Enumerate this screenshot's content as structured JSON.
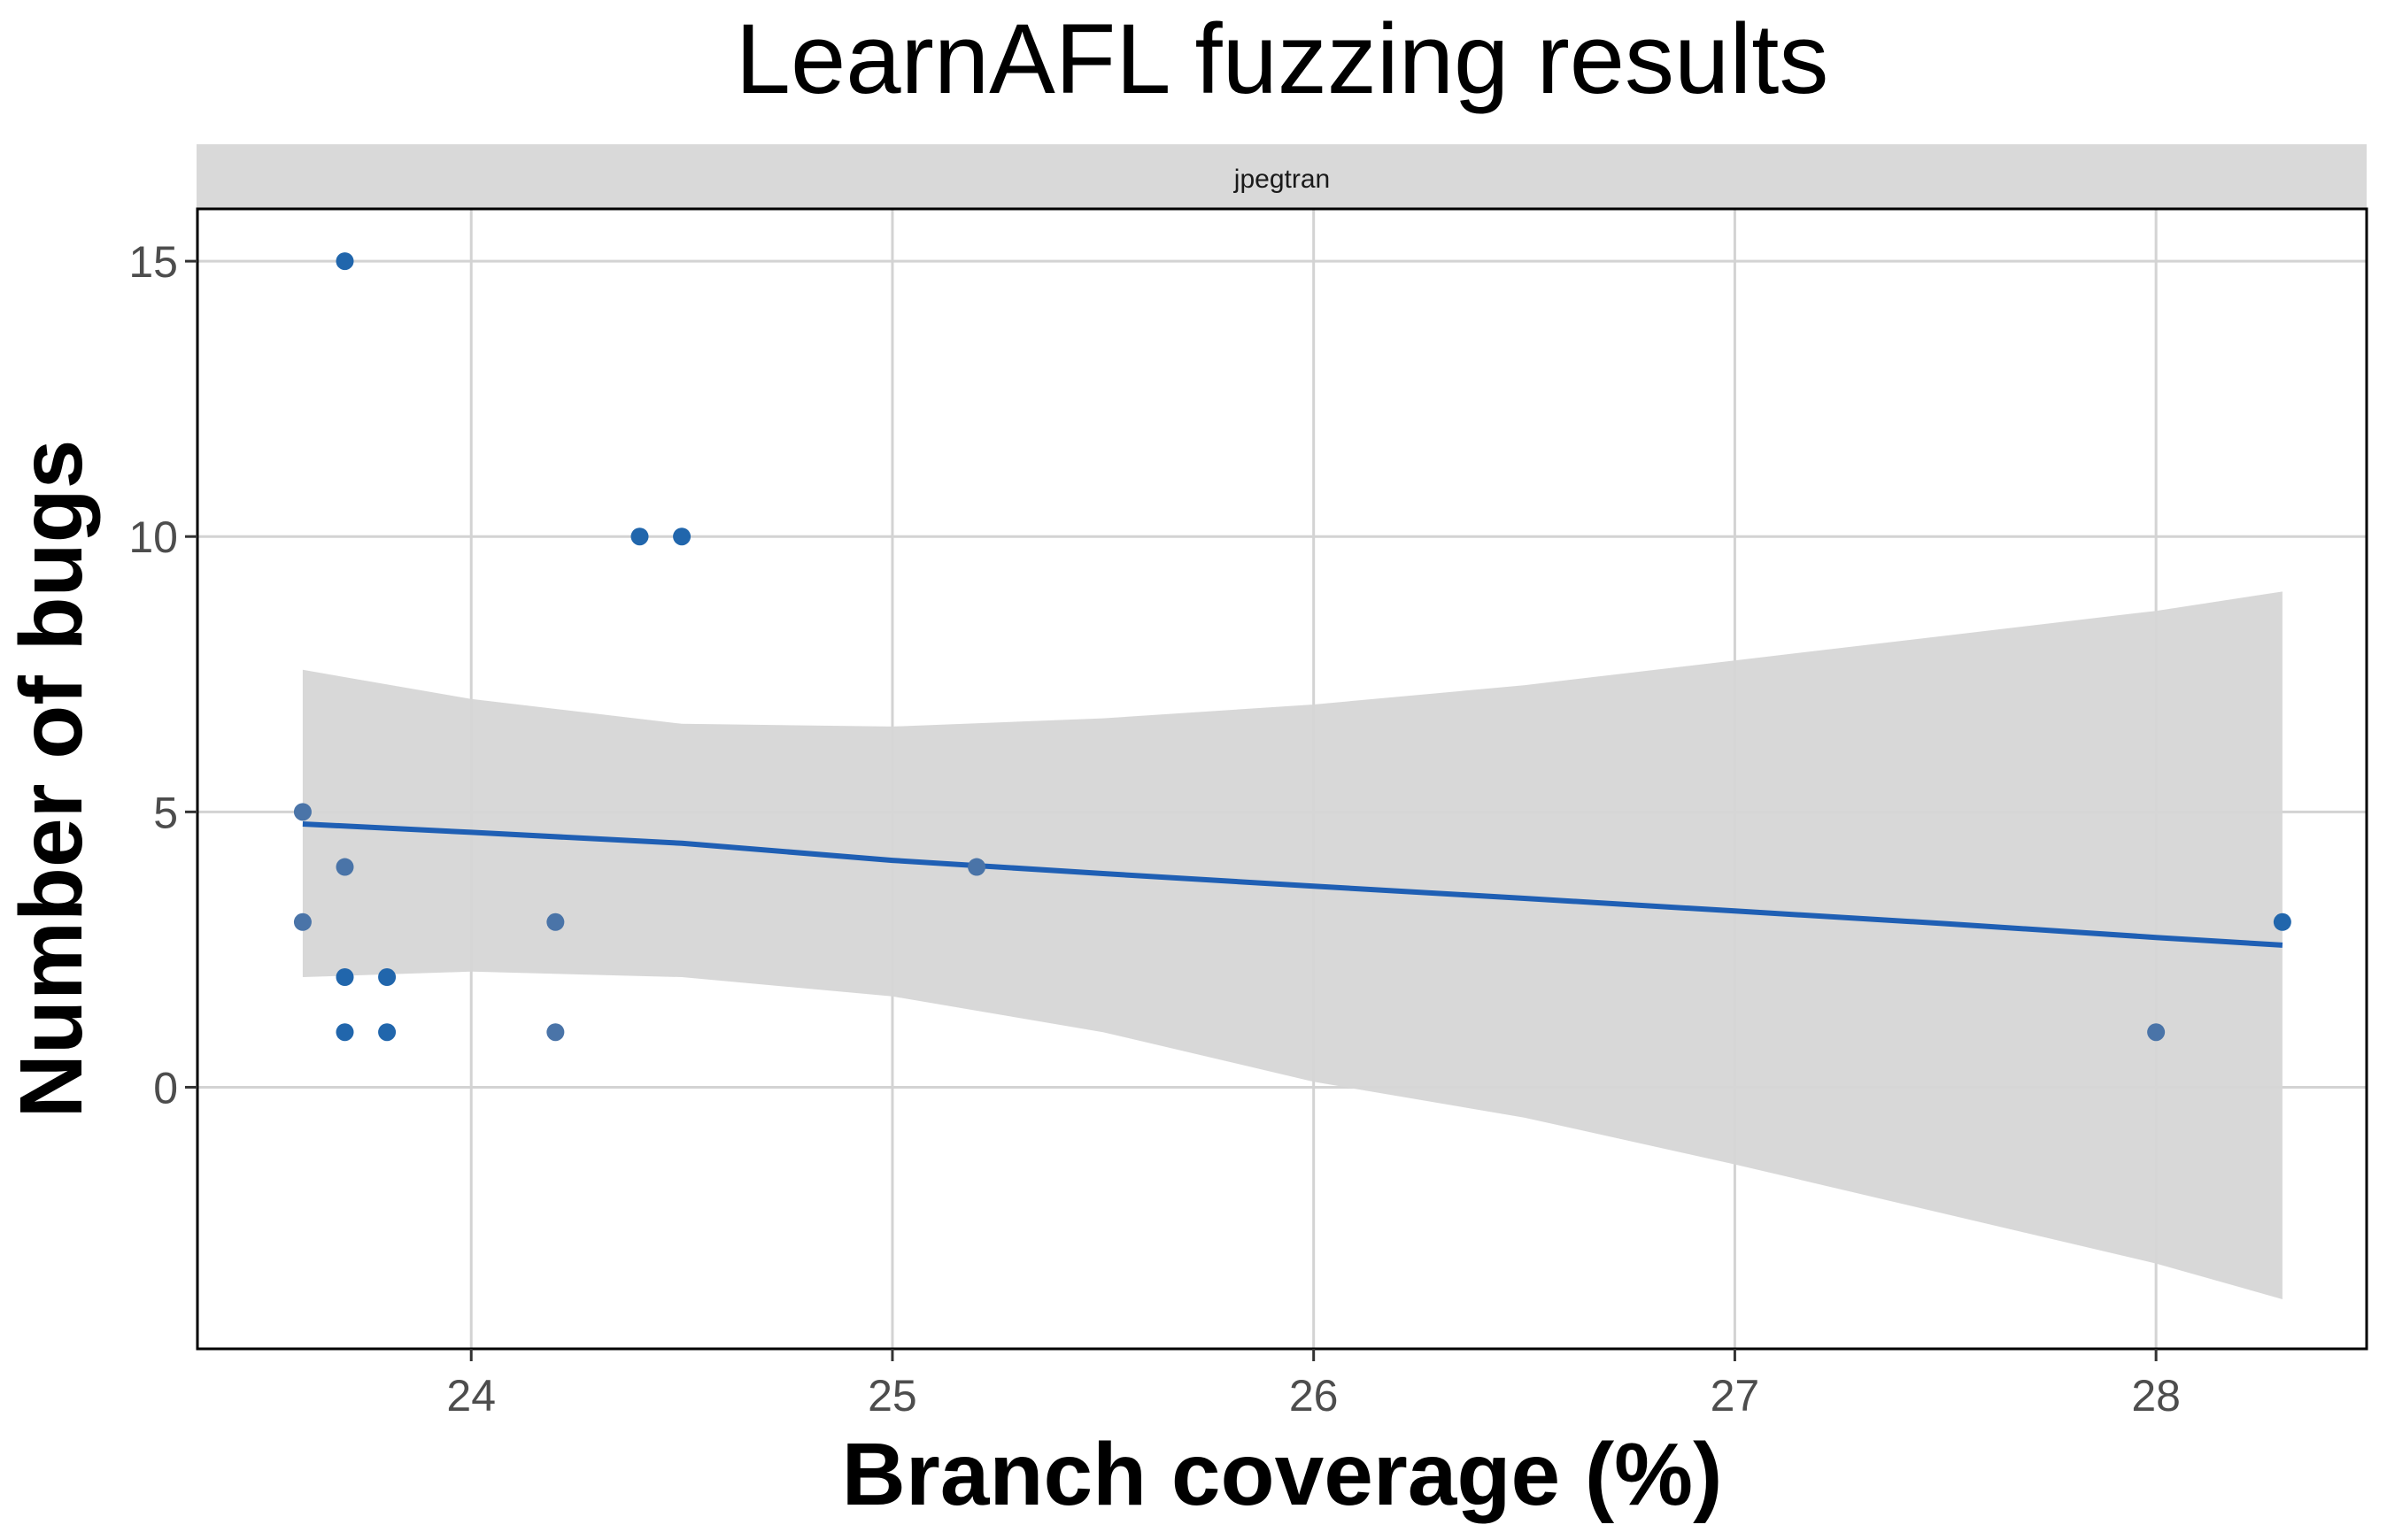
{
  "chart_data": {
    "type": "scatter",
    "title": "LearnAFL fuzzing results",
    "facet_label": "jpegtran",
    "xlabel": "Branch coverage (%)",
    "ylabel": "Number of bugs",
    "xlim": [
      23.35,
      28.5
    ],
    "ylim": [
      -4.75,
      15.95
    ],
    "x_ticks": [
      24,
      25,
      26,
      27,
      28
    ],
    "y_ticks": [
      0,
      5,
      10,
      15
    ],
    "grid": true,
    "colors": {
      "points": "#2166ac",
      "points_alt": "#4a74a8",
      "fit_line": "#1f5fb4",
      "ribbon": "#d6d6d6",
      "strip": "#d9d9d9",
      "grid": "#d3d3d3"
    },
    "points": [
      {
        "x": 23.6,
        "y": 5
      },
      {
        "x": 23.6,
        "y": 3
      },
      {
        "x": 23.7,
        "y": 15
      },
      {
        "x": 23.7,
        "y": 4
      },
      {
        "x": 23.7,
        "y": 2
      },
      {
        "x": 23.7,
        "y": 1
      },
      {
        "x": 23.8,
        "y": 2
      },
      {
        "x": 23.8,
        "y": 1
      },
      {
        "x": 24.2,
        "y": 3
      },
      {
        "x": 24.2,
        "y": 1
      },
      {
        "x": 24.4,
        "y": 10
      },
      {
        "x": 24.5,
        "y": 10
      },
      {
        "x": 25.2,
        "y": 4
      },
      {
        "x": 28.0,
        "y": 1
      },
      {
        "x": 28.3,
        "y": 3
      }
    ],
    "fit": {
      "x": [
        23.6,
        24.0,
        24.5,
        25.0,
        25.5,
        26.0,
        26.5,
        27.0,
        27.5,
        28.0,
        28.3
      ],
      "y": [
        4.78,
        4.63,
        4.43,
        4.12,
        3.88,
        3.65,
        3.43,
        3.2,
        2.97,
        2.72,
        2.58
      ],
      "lower": [
        2.0,
        2.1,
        2.0,
        1.65,
        1.0,
        0.1,
        -0.55,
        -1.4,
        -2.3,
        -3.2,
        -3.85
      ],
      "upper": [
        7.58,
        7.05,
        6.6,
        6.55,
        6.7,
        6.95,
        7.3,
        7.75,
        8.2,
        8.65,
        9.0
      ]
    }
  }
}
